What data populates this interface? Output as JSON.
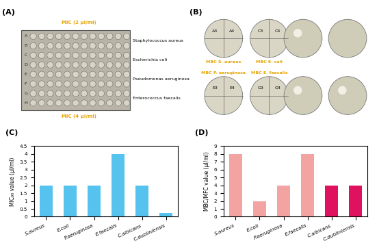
{
  "panel_labels": [
    "(A)",
    "(B)"
  ],
  "plate_a": {
    "rows": [
      "A",
      "B",
      "C",
      "D",
      "E",
      "F",
      "G",
      "H"
    ],
    "organisms": [
      "Staphylococcus aureus",
      "Escherichia coli",
      "Pseudomonas aeruginosa",
      "Enterococcus faecalis"
    ],
    "mic_top": "MIC (2 µl/ml)",
    "mic_bottom": "MIC (4 µl/ml)"
  },
  "plates_b": {
    "labels": [
      [
        "A3",
        "A4"
      ],
      [
        "C3",
        "C4"
      ],
      [
        "E3",
        "E4"
      ],
      [
        "G3",
        "G4"
      ]
    ],
    "mbc": [
      "MBC S. aureus",
      "MBC E. coli",
      "MBC P. aeruginosa",
      "MBC E. faecalis"
    ]
  },
  "chart_data": [
    {
      "type": "bar",
      "title": "(C)",
      "categories": [
        "S.aureus",
        "E.coli",
        "P.aeruginosa",
        "E.faecalis",
        "C.albicans",
        "C.dubliniensis"
      ],
      "values": [
        2,
        2,
        2,
        4,
        2,
        0.25
      ],
      "color": "#55c3ee",
      "y_label": "MIC₉₀ value (µl/ml)",
      "ylim": [
        0,
        4.5
      ],
      "yticks": [
        0,
        0.5,
        1,
        1.5,
        2,
        2.5,
        3,
        3.5,
        4,
        4.5
      ],
      "grid": false
    },
    {
      "type": "bar",
      "title": "(D)",
      "categories": [
        "S.aureus",
        "E.coli",
        "P.aeruginosa",
        "E.faecalis",
        "C.albicans",
        "C.dubliniensis"
      ],
      "values": [
        8,
        2,
        4,
        8,
        4,
        4
      ],
      "colors": [
        "#f4a3a3",
        "#f4a3a3",
        "#f4a3a3",
        "#f4a3a3",
        "#e0115f",
        "#e0115f"
      ],
      "y_label": "MBC/MFC value (µl/ml)",
      "ylim": [
        0,
        9
      ],
      "yticks": [
        0,
        1,
        2,
        3,
        4,
        5,
        6,
        7,
        8,
        9
      ],
      "grid": false
    }
  ]
}
